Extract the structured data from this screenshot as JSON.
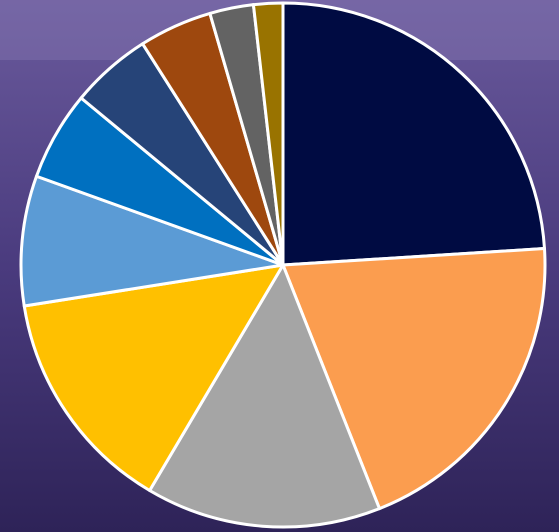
{
  "chart_data": {
    "type": "pie",
    "values": [
      24,
      20,
      14.5,
      14,
      8,
      5.5,
      5,
      4.5,
      2.7,
      1.8
    ],
    "colors": [
      "#000b42",
      "#fb9d4f",
      "#a5a5a5",
      "#ffc000",
      "#5b9bd5",
      "#0070c0",
      "#264478",
      "#9e480e",
      "#636363",
      "#997300"
    ],
    "start_angle": 0,
    "direction": "clockwise"
  }
}
